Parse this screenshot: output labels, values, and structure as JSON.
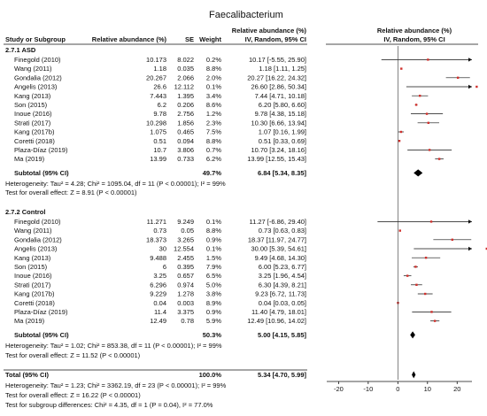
{
  "chart_data": {
    "type": "forest",
    "title": "Faecalibacterium",
    "headers": {
      "study": "Study or Subgroup",
      "abundance": "Relative abundance (%)",
      "se": "SE",
      "weight": "Weight",
      "ci_group": "Relative abundance (%)",
      "ci_method": "IV, Random, 95% CI",
      "plot_group": "Relative abundance (%)",
      "plot_method": "IV, Random, 95% CI"
    },
    "subgroups": [
      {
        "title": "2.7.1 ASD",
        "studies": [
          {
            "name": "Finegold (2010)",
            "value": 10.173,
            "value_text": "10.173",
            "se": "8.022",
            "weight": "0.2%",
            "ci_text": "10.17 [-5.55, 25.90]",
            "est": 10.17,
            "lo": -5.55,
            "hi": 25.9
          },
          {
            "name": "Wang (2011)",
            "value": 1.18,
            "value_text": "1.18",
            "se": "0.035",
            "weight": "8.8%",
            "ci_text": "1.18 [1.11, 1.25]",
            "est": 1.18,
            "lo": 1.11,
            "hi": 1.25
          },
          {
            "name": "Gondalia (2012)",
            "value": 20.267,
            "value_text": "20.267",
            "se": "2.066",
            "weight": "2.0%",
            "ci_text": "20.27 [16.22, 24.32]",
            "est": 20.27,
            "lo": 16.22,
            "hi": 24.32
          },
          {
            "name": "Angelis (2013)",
            "value": 26.6,
            "value_text": "26.6",
            "se": "12.112",
            "weight": "0.1%",
            "ci_text": "26.60 [2.86, 50.34]",
            "est": 26.6,
            "lo": 2.86,
            "hi": 50.34
          },
          {
            "name": "Kang (2013)",
            "value": 7.443,
            "value_text": "7.443",
            "se": "1.395",
            "weight": "3.4%",
            "ci_text": "7.44 [4.71, 10.18]",
            "est": 7.44,
            "lo": 4.71,
            "hi": 10.18
          },
          {
            "name": "Son (2015)",
            "value": 6.2,
            "value_text": "6.2",
            "se": "0.206",
            "weight": "8.6%",
            "ci_text": "6.20 [5.80, 6.60]",
            "est": 6.2,
            "lo": 5.8,
            "hi": 6.6
          },
          {
            "name": "Inoue (2016)",
            "value": 9.78,
            "value_text": "9.78",
            "se": "2.756",
            "weight": "1.2%",
            "ci_text": "9.78 [4.38, 15.18]",
            "est": 9.78,
            "lo": 4.38,
            "hi": 15.18
          },
          {
            "name": "Strati (2017)",
            "value": 10.298,
            "value_text": "10.298",
            "se": "1.856",
            "weight": "2.3%",
            "ci_text": "10.30 [6.66, 13.94]",
            "est": 10.3,
            "lo": 6.66,
            "hi": 13.94
          },
          {
            "name": "Kang (2017b)",
            "value": 1.075,
            "value_text": "1.075",
            "se": "0.465",
            "weight": "7.5%",
            "ci_text": "1.07 [0.16, 1.99]",
            "est": 1.07,
            "lo": 0.16,
            "hi": 1.99
          },
          {
            "name": "Coretti (2018)",
            "value": 0.51,
            "value_text": "0.51",
            "se": "0.094",
            "weight": "8.8%",
            "ci_text": "0.51 [0.33, 0.69]",
            "est": 0.51,
            "lo": 0.33,
            "hi": 0.69
          },
          {
            "name": "Plaza-Díaz (2019)",
            "value": 10.7,
            "value_text": "10.7",
            "se": "3.806",
            "weight": "0.7%",
            "ci_text": "10.70 [3.24, 18.16]",
            "est": 10.7,
            "lo": 3.24,
            "hi": 18.16
          },
          {
            "name": "Ma (2019)",
            "value": 13.99,
            "value_text": "13.99",
            "se": "0.733",
            "weight": "6.2%",
            "ci_text": "13.99 [12.55, 15.43]",
            "est": 13.99,
            "lo": 12.55,
            "hi": 15.43
          }
        ],
        "subtotal": {
          "label": "Subtotal (95% CI)",
          "weight": "49.7%",
          "ci_text": "6.84 [5.34, 8.35]",
          "est": 6.84,
          "lo": 5.34,
          "hi": 8.35
        },
        "heterogeneity": "Heterogeneity: Tau² = 4.28; Chi² = 1095.04, df = 11 (P < 0.00001); I² = 99%",
        "overall_test": "Test for overall effect: Z = 8.91 (P < 0.00001)"
      },
      {
        "title": "2.7.2 Control",
        "studies": [
          {
            "name": "Finegold (2010)",
            "value": 11.271,
            "value_text": "11.271",
            "se": "9.249",
            "weight": "0.1%",
            "ci_text": "11.27 [-6.86, 29.40]",
            "est": 11.27,
            "lo": -6.86,
            "hi": 29.4
          },
          {
            "name": "Wang (2011)",
            "value": 0.73,
            "value_text": "0.73",
            "se": "0.05",
            "weight": "8.8%",
            "ci_text": "0.73 [0.63, 0.83]",
            "est": 0.73,
            "lo": 0.63,
            "hi": 0.83
          },
          {
            "name": "Gondalia (2012)",
            "value": 18.373,
            "value_text": "18.373",
            "se": "3.265",
            "weight": "0.9%",
            "ci_text": "18.37 [11.97, 24.77]",
            "est": 18.37,
            "lo": 11.97,
            "hi": 24.77
          },
          {
            "name": "Angelis (2013)",
            "value": 30,
            "value_text": "30",
            "se": "12.554",
            "weight": "0.1%",
            "ci_text": "30.00 [5.39, 54.61]",
            "est": 30.0,
            "lo": 5.39,
            "hi": 54.61
          },
          {
            "name": "Kang (2013)",
            "value": 9.488,
            "value_text": "9.488",
            "se": "2.455",
            "weight": "1.5%",
            "ci_text": "9.49 [4.68, 14.30]",
            "est": 9.49,
            "lo": 4.68,
            "hi": 14.3
          },
          {
            "name": "Son (2015)",
            "value": 6,
            "value_text": "6",
            "se": "0.395",
            "weight": "7.9%",
            "ci_text": "6.00 [5.23, 6.77]",
            "est": 6.0,
            "lo": 5.23,
            "hi": 6.77
          },
          {
            "name": "Inoue (2016)",
            "value": 3.25,
            "value_text": "3.25",
            "se": "0.657",
            "weight": "6.5%",
            "ci_text": "3.25 [1.96, 4.54]",
            "est": 3.25,
            "lo": 1.96,
            "hi": 4.54
          },
          {
            "name": "Strati (2017)",
            "value": 6.296,
            "value_text": "6.296",
            "se": "0.974",
            "weight": "5.0%",
            "ci_text": "6.30 [4.39, 8.21]",
            "est": 6.3,
            "lo": 4.39,
            "hi": 8.21
          },
          {
            "name": "Kang (2017b)",
            "value": 9.229,
            "value_text": "9.229",
            "se": "1.278",
            "weight": "3.8%",
            "ci_text": "9.23 [6.72, 11.73]",
            "est": 9.23,
            "lo": 6.72,
            "hi": 11.73
          },
          {
            "name": "Coretti (2018)",
            "value": 0.04,
            "value_text": "0.04",
            "se": "0.003",
            "weight": "8.9%",
            "ci_text": "0.04 [0.03, 0.05]",
            "est": 0.04,
            "lo": 0.03,
            "hi": 0.05
          },
          {
            "name": "Plaza-Díaz (2019)",
            "value": 11.4,
            "value_text": "11.4",
            "se": "3.375",
            "weight": "0.9%",
            "ci_text": "11.40 [4.79, 18.01]",
            "est": 11.4,
            "lo": 4.79,
            "hi": 18.01
          },
          {
            "name": "Ma (2019)",
            "value": 12.49,
            "value_text": "12.49",
            "se": "0.78",
            "weight": "5.9%",
            "ci_text": "12.49 [10.96, 14.02]",
            "est": 12.49,
            "lo": 10.96,
            "hi": 14.02
          }
        ],
        "subtotal": {
          "label": "Subtotal (95% CI)",
          "weight": "50.3%",
          "ci_text": "5.00 [4.15, 5.85]",
          "est": 5.0,
          "lo": 4.15,
          "hi": 5.85
        },
        "heterogeneity": "Heterogeneity: Tau² = 1.02; Chi² = 853.38, df = 11 (P < 0.00001); I² = 99%",
        "overall_test": "Test for overall effect: Z = 11.52 (P < 0.00001)"
      }
    ],
    "total": {
      "label": "Total (95% CI)",
      "weight": "100.0%",
      "ci_text": "5.34 [4.70, 5.99]",
      "est": 5.34,
      "lo": 4.7,
      "hi": 5.99
    },
    "total_heterogeneity": "Heterogeneity: Tau² = 1.23; Chi² = 3362.19, df = 23 (P < 0.00001); I² = 99%",
    "total_overall_test": "Test for overall effect: Z = 16.22 (P < 0.00001)",
    "subgroup_test": "Test for subgroup differences: Chi² = 4.35, df = 1 (P = 0.04), I² = 77.0%",
    "xaxis": {
      "ticks": [
        -20,
        -10,
        0,
        10,
        20
      ],
      "tick_labels": [
        "-20",
        "-10",
        "0",
        "10",
        "20"
      ],
      "xlim": [
        -24,
        25
      ]
    },
    "colors": {
      "study_marker": "#d0312d",
      "line": "#111111",
      "diamond": "#000000"
    }
  }
}
